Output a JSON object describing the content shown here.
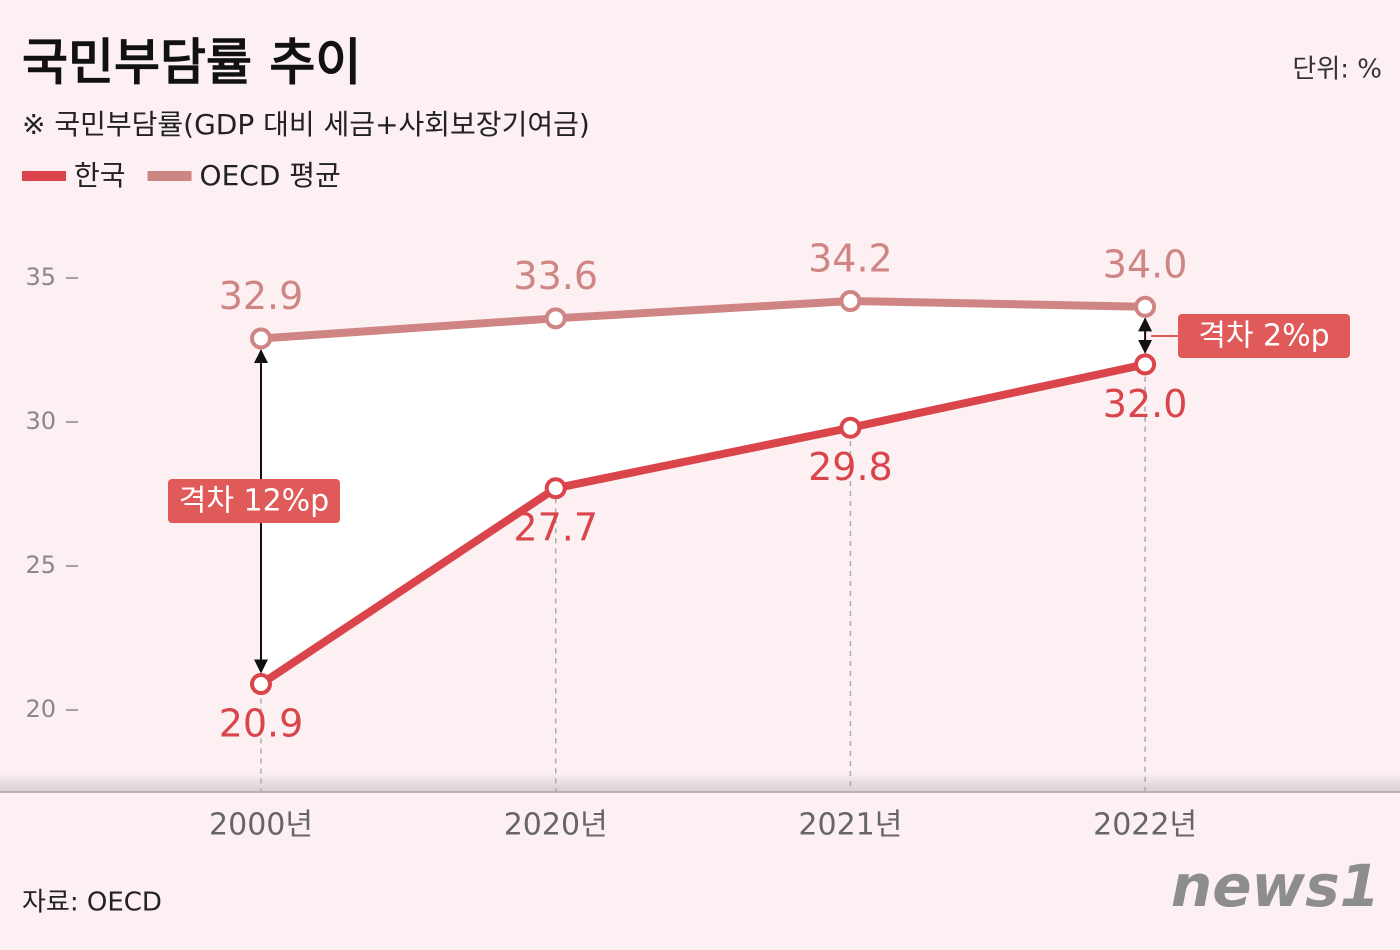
{
  "chart_data": {
    "type": "line",
    "title": "국민부담률 추이",
    "subtitle": "※ 국민부담률(GDP 대비 세금+사회보장기여금)",
    "unit": "단위: %",
    "source": "자료: OECD",
    "logo": "news1",
    "categories": [
      "2000년",
      "2020년",
      "2021년",
      "2022년"
    ],
    "series": [
      {
        "name": "한국",
        "color": "#d9454a",
        "values": [
          20.9,
          27.7,
          29.8,
          32.0
        ],
        "value_labels": [
          "20.9",
          "27.7",
          "29.8",
          "32.0"
        ]
      },
      {
        "name": "OECD 평균",
        "color": "#d08585",
        "values": [
          32.9,
          33.6,
          34.2,
          34.0
        ],
        "value_labels": [
          "32.9",
          "33.6",
          "34.2",
          "34.0"
        ]
      }
    ],
    "ylim": [
      17.7,
      36.5
    ],
    "yticks": [
      20,
      25,
      30,
      35
    ],
    "annotations": [
      "격차 12%p",
      "격차 2%p"
    ]
  }
}
